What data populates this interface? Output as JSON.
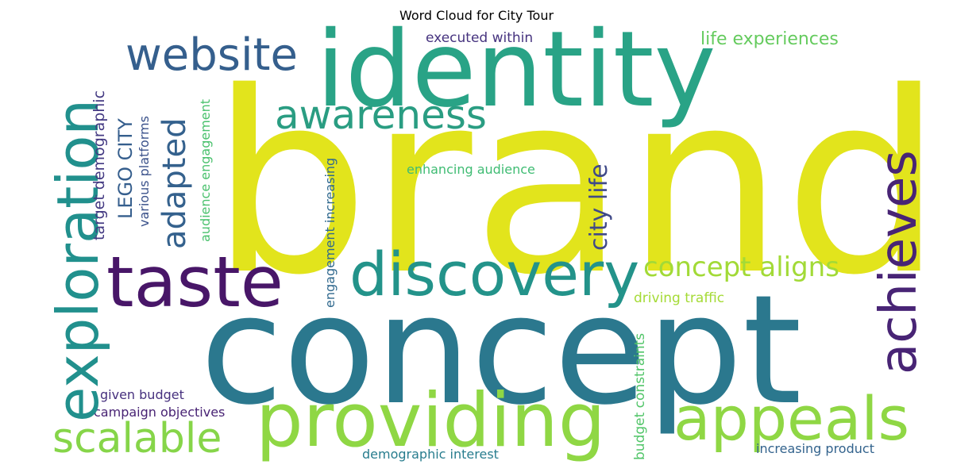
{
  "title": "Word Cloud for City Tour",
  "colors": {
    "background": "#ffffff",
    "brand": "#e2e41c",
    "concept": "#2b788e",
    "identity": "#29a386",
    "providing": "#8fd744",
    "taste": "#481668",
    "discovery": "#23938a",
    "appeals": "#8fd744",
    "achieves": "#482475",
    "exploration": "#21908d",
    "website": "#355f8d",
    "awareness": "#2a9d82",
    "scalable": "#86d549",
    "adapted": "#34618d",
    "city_life": "#404a88",
    "concept_aligns": "#a2da37",
    "lego_city": "#355e8d",
    "target_demographic": "#443a83",
    "various_platforms": "#3b528b",
    "audience_engagement": "#4ac16d",
    "engagement_increasing": "#30698e",
    "enhancing_audience": "#3fbc73",
    "life_experiences": "#65cb5e",
    "executed_within": "#46337f",
    "driving_traffic": "#a5db36",
    "budget_constraints": "#52c569",
    "given_budget": "#46307e",
    "campaign_objectives": "#482374",
    "demographic_interest": "#287d8e",
    "increasing_product": "#33638d"
  },
  "words": {
    "brand": "brand",
    "concept": "concept",
    "identity": "identity",
    "providing": "providing",
    "taste": "taste",
    "discovery": "discovery",
    "appeals": "appeals",
    "achieves": "achieves",
    "exploration": "exploration",
    "website": "website",
    "awareness": "awareness",
    "scalable": "scalable",
    "adapted": "adapted",
    "city_life": "city life",
    "concept_aligns": "concept aligns",
    "lego_city": "LEGO CITY",
    "target_demographic": "target demographic",
    "various_platforms": "various platforms",
    "audience_engagement": "audience engagement",
    "engagement_increasing": "engagement increasing",
    "enhancing_audience": "enhancing audience",
    "life_experiences": "life experiences",
    "executed_within": "executed within",
    "driving_traffic": "driving traffic",
    "budget_constraints": "budget constraints",
    "given_budget": "given budget",
    "campaign_objectives": "campaign objectives",
    "demographic_interest": "demographic interest",
    "increasing_product": "increasing product"
  }
}
